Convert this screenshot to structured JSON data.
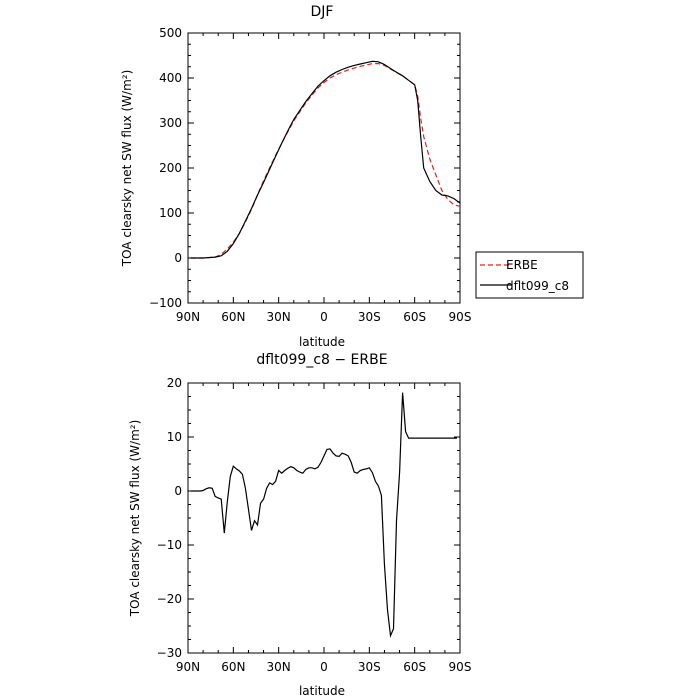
{
  "chart_data": [
    {
      "type": "line",
      "title": "DJF",
      "xlabel": "latitude",
      "ylabel": "TOA clearsky net SW flux (W/m²)",
      "xlim": [
        90,
        -90
      ],
      "ylim": [
        -100,
        500
      ],
      "x_ticks": [
        90,
        60,
        30,
        0,
        -30,
        -60,
        -90
      ],
      "x_tick_labels": [
        "90N",
        "60N",
        "30N",
        "0",
        "30S",
        "60S",
        "90S"
      ],
      "y_ticks": [
        -100,
        0,
        100,
        200,
        300,
        400,
        500
      ],
      "y_tick_labels": [
        "−100",
        "0",
        "100",
        "200",
        "300",
        "400",
        "500"
      ],
      "legend": {
        "placement": "right",
        "entries": [
          "ERBE",
          "dflt099_c8"
        ]
      },
      "series": [
        {
          "name": "ERBE",
          "color": "#e02020",
          "dash": "dashed",
          "x": [
            88,
            80,
            72,
            68,
            64,
            60,
            56,
            52,
            48,
            44,
            40,
            36,
            32,
            28,
            24,
            20,
            16,
            12,
            8,
            4,
            0,
            -4,
            -8,
            -12,
            -16,
            -20,
            -24,
            -28,
            -32,
            -36,
            -40,
            -44,
            -48,
            -52,
            -56,
            -60,
            -62,
            -64,
            -66,
            -70,
            -74,
            -78,
            -82,
            -86,
            -90
          ],
          "y": [
            0,
            0,
            2,
            8,
            20,
            35,
            55,
            80,
            108,
            140,
            172,
            200,
            228,
            255,
            280,
            305,
            325,
            345,
            362,
            378,
            390,
            400,
            407,
            413,
            418,
            422,
            426,
            429,
            432,
            432,
            428,
            420,
            412,
            405,
            395,
            385,
            360,
            310,
            270,
            220,
            185,
            150,
            130,
            118,
            115
          ]
        },
        {
          "name": "dflt099_c8",
          "color": "#000000",
          "dash": "solid",
          "x": [
            88,
            80,
            72,
            68,
            64,
            60,
            56,
            52,
            48,
            44,
            40,
            36,
            32,
            28,
            24,
            20,
            16,
            12,
            8,
            4,
            0,
            -4,
            -8,
            -12,
            -16,
            -20,
            -24,
            -28,
            -32,
            -36,
            -40,
            -44,
            -48,
            -52,
            -56,
            -60,
            -62,
            -64,
            -66,
            -70,
            -74,
            -78,
            -82,
            -86,
            -90
          ],
          "y": [
            0,
            0,
            2,
            5,
            15,
            32,
            55,
            82,
            110,
            140,
            168,
            197,
            226,
            255,
            282,
            308,
            328,
            348,
            365,
            382,
            394,
            405,
            413,
            419,
            424,
            428,
            431,
            434,
            437,
            436,
            430,
            421,
            413,
            405,
            395,
            385,
            350,
            270,
            200,
            170,
            150,
            140,
            138,
            132,
            122
          ]
        }
      ]
    },
    {
      "type": "line",
      "title": "dflt099_c8 − ERBE",
      "xlabel": "latitude",
      "ylabel": "TOA clearsky net SW flux (W/m²)",
      "xlim": [
        90,
        -90
      ],
      "ylim": [
        -30,
        20
      ],
      "x_ticks": [
        90,
        60,
        30,
        0,
        -30,
        -60,
        -90
      ],
      "x_tick_labels": [
        "90N",
        "60N",
        "30N",
        "0",
        "30S",
        "60S",
        "90S"
      ],
      "y_ticks": [
        -30,
        -20,
        -10,
        0,
        10,
        20
      ],
      "y_tick_labels": [
        "−30",
        "−20",
        "−10",
        "0",
        "10",
        "20"
      ],
      "series": [
        {
          "color": "#000000",
          "dash": "solid",
          "x": [
            88,
            86,
            84,
            82,
            80,
            78,
            76,
            74,
            72,
            70,
            68,
            66,
            64,
            62,
            60,
            58,
            56,
            54,
            52,
            50,
            48,
            46,
            44,
            42,
            40,
            38,
            36,
            34,
            32,
            30,
            28,
            26,
            24,
            22,
            20,
            18,
            16,
            14,
            12,
            10,
            8,
            6,
            4,
            2,
            0,
            -2,
            -4,
            -6,
            -8,
            -10,
            -12,
            -14,
            -16,
            -18,
            -20,
            -22,
            -24,
            -26,
            -28,
            -30,
            -32,
            -34,
            -36,
            -38,
            -40,
            -42,
            -44,
            -46,
            -48,
            -50,
            -52,
            -54,
            -56,
            -58,
            -60,
            -62,
            -64,
            -66,
            -68,
            -70,
            -72,
            -74,
            -76,
            -78,
            -80,
            -82,
            -84,
            -86,
            -88
          ],
          "y": [
            0,
            0,
            0,
            0,
            0.1,
            0.4,
            0.6,
            0.5,
            -1,
            -1.3,
            -1.5,
            -7.8,
            -2,
            2.7,
            4.6,
            4.1,
            3.7,
            3.1,
            0.5,
            -3.3,
            -7.3,
            -5.5,
            -6.3,
            -2.3,
            -1.5,
            0.5,
            1.5,
            1.2,
            1.8,
            3.8,
            3.3,
            3.8,
            4.2,
            4.5,
            4.3,
            3.8,
            3.5,
            3.3,
            4.0,
            4.3,
            4.3,
            4.1,
            4.4,
            5.3,
            6.5,
            7.7,
            7.8,
            7.0,
            6.5,
            6.4,
            7.0,
            6.8,
            6.5,
            5.3,
            3.5,
            3.3,
            3.8,
            4.0,
            4.1,
            4.3,
            3.4,
            1.8,
            0.9,
            -0.8,
            -13.5,
            -22.0,
            -26.8,
            -25.5,
            -5.5,
            3.5,
            18.2,
            11.0,
            9.8,
            9.8,
            9.8,
            9.8,
            9.8,
            9.8,
            9.8,
            9.8,
            9.8,
            9.8,
            9.8,
            9.8,
            9.8,
            9.8,
            9.8,
            9.8,
            9.8
          ]
        }
      ]
    }
  ]
}
